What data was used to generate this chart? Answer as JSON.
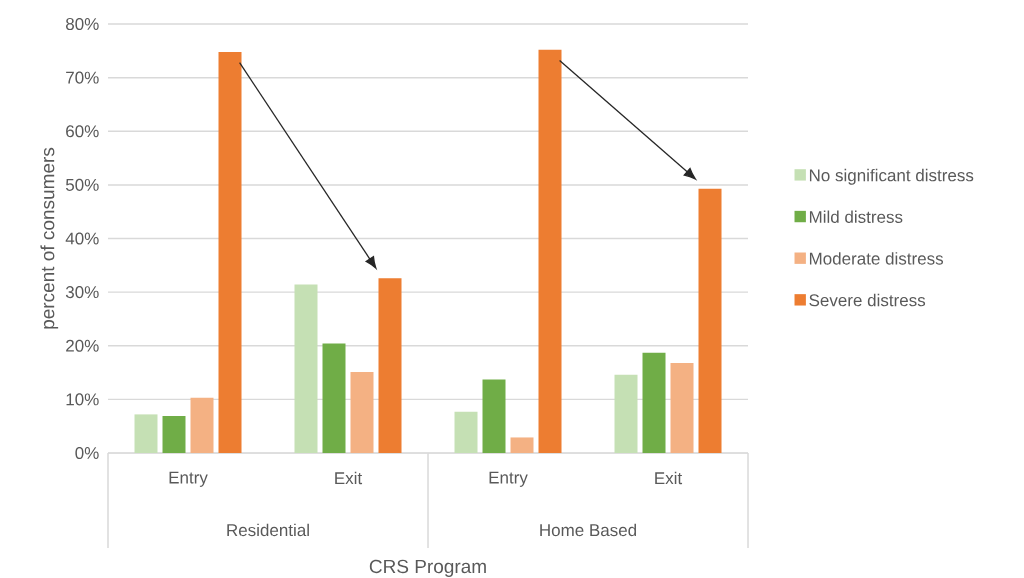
{
  "chart_data": {
    "type": "bar",
    "xlabel": "CRS Program",
    "ylabel": "percent of consumers",
    "categories": [
      "Entry",
      "Exit",
      "Entry",
      "Exit"
    ],
    "annotations": [
      "Residential",
      "Home Based"
    ],
    "series": [
      {
        "name": "No significant distress",
        "color": "#c5e0b4",
        "values": [
          7.2,
          31.4,
          7.7,
          14.6
        ]
      },
      {
        "name": "Mild distress",
        "color": "#70ad47",
        "values": [
          6.9,
          20.4,
          13.7,
          18.7
        ]
      },
      {
        "name": "Moderate distress",
        "color": "#f4b183",
        "values": [
          10.3,
          15.1,
          2.9,
          16.8
        ]
      },
      {
        "name": "Severe distress",
        "color": "#ed7d31",
        "values": [
          74.8,
          32.6,
          75.2,
          49.3
        ]
      }
    ],
    "ylim": [
      0,
      80
    ],
    "yticks": [
      {
        "value": 0,
        "label": "0%"
      },
      {
        "value": 10,
        "label": "10%"
      },
      {
        "value": 20,
        "label": "20%"
      },
      {
        "value": 30,
        "label": "30%"
      },
      {
        "value": 40,
        "label": "40%"
      },
      {
        "value": 50,
        "label": "50%"
      },
      {
        "value": 60,
        "label": "60%"
      },
      {
        "value": 70,
        "label": "70%"
      },
      {
        "value": 80,
        "label": "80%"
      }
    ],
    "grid": "y",
    "legend": "right"
  }
}
